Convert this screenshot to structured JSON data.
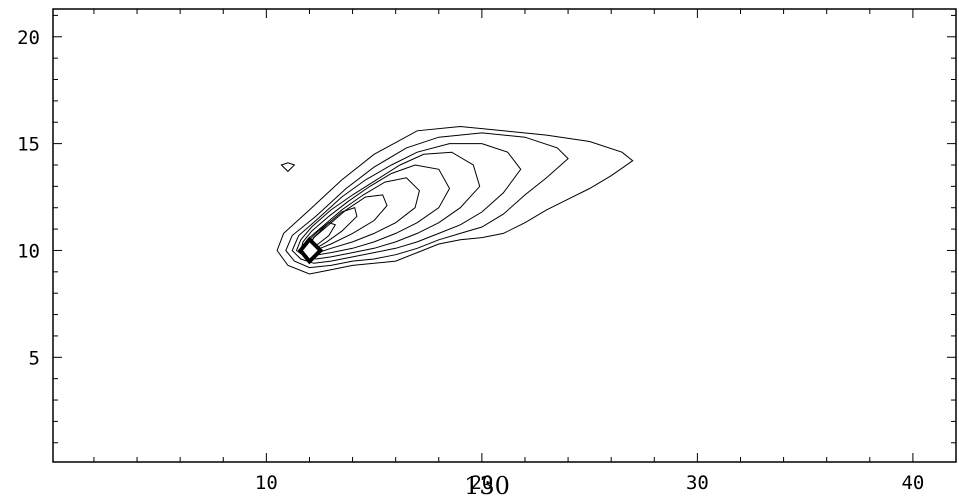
{
  "chart_data": {
    "type": "contour",
    "title": "",
    "xlabel": "",
    "ylabel": "",
    "xlim": [
      0.1,
      42
    ],
    "ylim": [
      0.1,
      21.3
    ],
    "x_ticks": [
      10,
      20,
      30,
      40
    ],
    "y_ticks": [
      5,
      10,
      15,
      20
    ],
    "x_tick_labels": [
      "10",
      "20",
      "30",
      "40"
    ],
    "y_tick_labels": [
      "5",
      "10",
      "15",
      "20"
    ],
    "overlay_text": "130",
    "grid": false,
    "line_color": "#000000",
    "background": "#ffffff",
    "peak": {
      "x": 12,
      "y": 10
    },
    "contours": [
      [
        [
          10.5,
          10
        ],
        [
          11,
          9.3
        ],
        [
          12,
          8.9
        ],
        [
          13,
          9.1
        ],
        [
          14,
          9.3
        ],
        [
          15,
          9.4
        ],
        [
          16,
          9.5
        ],
        [
          17,
          9.9
        ],
        [
          18,
          10.3
        ],
        [
          19,
          10.5
        ],
        [
          20,
          10.6
        ],
        [
          21,
          10.8
        ],
        [
          22,
          11.3
        ],
        [
          23,
          11.9
        ],
        [
          24,
          12.4
        ],
        [
          25,
          12.9
        ],
        [
          26,
          13.5
        ],
        [
          27,
          14.2
        ],
        [
          26.5,
          14.6
        ],
        [
          25,
          15.1
        ],
        [
          23,
          15.4
        ],
        [
          21,
          15.6
        ],
        [
          19,
          15.8
        ],
        [
          17,
          15.6
        ],
        [
          15,
          14.5
        ],
        [
          13.5,
          13.3
        ],
        [
          12,
          11.9
        ],
        [
          10.8,
          10.8
        ]
      ],
      [
        [
          10.9,
          10
        ],
        [
          11.3,
          9.5
        ],
        [
          12,
          9.2
        ],
        [
          13,
          9.3
        ],
        [
          14,
          9.5
        ],
        [
          15,
          9.6
        ],
        [
          16,
          9.8
        ],
        [
          17,
          10.1
        ],
        [
          18,
          10.5
        ],
        [
          19,
          10.8
        ],
        [
          20,
          11.1
        ],
        [
          21,
          11.7
        ],
        [
          22,
          12.6
        ],
        [
          23,
          13.4
        ],
        [
          24,
          14.3
        ],
        [
          23.5,
          14.8
        ],
        [
          22,
          15.3
        ],
        [
          20,
          15.5
        ],
        [
          18,
          15.3
        ],
        [
          16.5,
          14.8
        ],
        [
          15,
          13.9
        ],
        [
          13.7,
          12.9
        ],
        [
          12.3,
          11.6
        ],
        [
          11.2,
          10.7
        ]
      ],
      [
        [
          11.2,
          10
        ],
        [
          11.6,
          9.6
        ],
        [
          12.2,
          9.4
        ],
        [
          13,
          9.5
        ],
        [
          14,
          9.7
        ],
        [
          15,
          9.9
        ],
        [
          16,
          10.1
        ],
        [
          17,
          10.4
        ],
        [
          18,
          10.8
        ],
        [
          19,
          11.2
        ],
        [
          20,
          11.8
        ],
        [
          21,
          12.7
        ],
        [
          21.8,
          13.8
        ],
        [
          21.2,
          14.6
        ],
        [
          20,
          15
        ],
        [
          18.5,
          15
        ],
        [
          17,
          14.6
        ],
        [
          15.8,
          14
        ],
        [
          14.6,
          13.3
        ],
        [
          13.5,
          12.5
        ],
        [
          12.3,
          11.4
        ],
        [
          11.5,
          10.7
        ]
      ],
      [
        [
          11.4,
          10
        ],
        [
          11.8,
          9.7
        ],
        [
          12.3,
          9.6
        ],
        [
          13,
          9.7
        ],
        [
          14,
          9.9
        ],
        [
          15,
          10.1
        ],
        [
          16,
          10.4
        ],
        [
          17,
          10.8
        ],
        [
          18,
          11.3
        ],
        [
          19,
          12
        ],
        [
          19.9,
          13
        ],
        [
          19.6,
          14
        ],
        [
          18.6,
          14.6
        ],
        [
          17.3,
          14.5
        ],
        [
          16.2,
          14
        ],
        [
          15.1,
          13.3
        ],
        [
          14,
          12.6
        ],
        [
          13,
          11.9
        ],
        [
          12.1,
          11.1
        ],
        [
          11.6,
          10.5
        ]
      ],
      [
        [
          11.6,
          10
        ],
        [
          11.9,
          9.8
        ],
        [
          12.4,
          9.8
        ],
        [
          13,
          9.9
        ],
        [
          14,
          10.1
        ],
        [
          15,
          10.4
        ],
        [
          16,
          10.8
        ],
        [
          17,
          11.3
        ],
        [
          18,
          12
        ],
        [
          18.5,
          12.9
        ],
        [
          18,
          13.8
        ],
        [
          16.9,
          14
        ],
        [
          15.8,
          13.6
        ],
        [
          14.8,
          13
        ],
        [
          13.8,
          12.3
        ],
        [
          12.9,
          11.6
        ],
        [
          12.1,
          10.9
        ],
        [
          11.7,
          10.4
        ]
      ],
      [
        [
          11.7,
          10
        ],
        [
          12,
          9.9
        ],
        [
          12.4,
          9.9
        ],
        [
          13,
          10.1
        ],
        [
          14,
          10.4
        ],
        [
          15,
          10.8
        ],
        [
          16,
          11.3
        ],
        [
          16.9,
          12
        ],
        [
          17.1,
          12.8
        ],
        [
          16.5,
          13.4
        ],
        [
          15.5,
          13.2
        ],
        [
          14.5,
          12.6
        ],
        [
          13.5,
          11.9
        ],
        [
          12.7,
          11.2
        ],
        [
          12,
          10.6
        ]
      ],
      [
        [
          11.8,
          10
        ],
        [
          12.1,
          10
        ],
        [
          12.5,
          10.1
        ],
        [
          13,
          10.3
        ],
        [
          14,
          10.8
        ],
        [
          15,
          11.4
        ],
        [
          15.6,
          12.1
        ],
        [
          15.4,
          12.6
        ],
        [
          14.6,
          12.5
        ],
        [
          13.7,
          11.9
        ],
        [
          12.9,
          11.2
        ],
        [
          12.2,
          10.6
        ]
      ],
      [
        [
          11.9,
          10
        ],
        [
          12.3,
          10.1
        ],
        [
          12.8,
          10.4
        ],
        [
          13.5,
          10.9
        ],
        [
          14.2,
          11.6
        ],
        [
          14.1,
          12
        ],
        [
          13.5,
          11.8
        ],
        [
          12.8,
          11.2
        ],
        [
          12.2,
          10.6
        ]
      ],
      [
        [
          11.95,
          10.1
        ],
        [
          12.4,
          10.3
        ],
        [
          12.9,
          10.7
        ],
        [
          13.2,
          11.2
        ],
        [
          12.9,
          11.3
        ],
        [
          12.4,
          10.9
        ],
        [
          12,
          10.5
        ]
      ],
      [
        [
          10.7,
          14
        ],
        [
          11,
          13.7
        ],
        [
          11.3,
          14
        ],
        [
          11,
          14.1
        ]
      ]
    ]
  }
}
